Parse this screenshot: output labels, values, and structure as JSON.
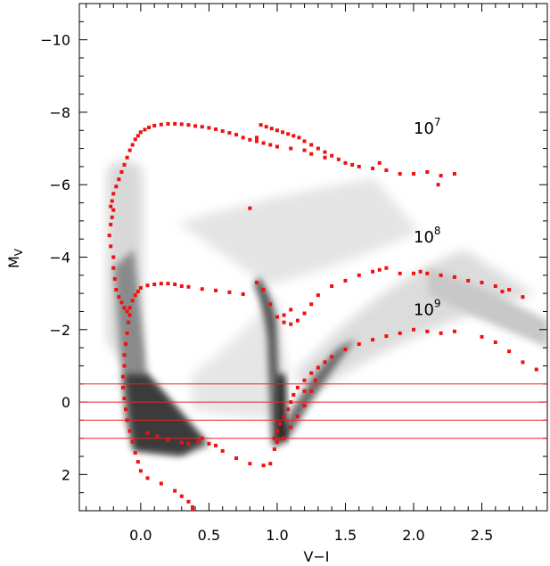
{
  "chart_data": {
    "type": "scatter",
    "title": "",
    "xlabel": "V−I",
    "ylabel": "M",
    "ylabel_sub": "V",
    "xlim": [
      -0.45,
      2.98
    ],
    "ylim": [
      3.0,
      -11.0
    ],
    "x_ticks": [
      0.0,
      0.5,
      1.0,
      1.5,
      2.0,
      2.5
    ],
    "x_tick_labels": [
      "0.0",
      "0.5",
      "1.0",
      "1.5",
      "2.0",
      "2.5"
    ],
    "y_ticks": [
      -10,
      -8,
      -6,
      -4,
      -2,
      0,
      2
    ],
    "y_tick_labels": [
      "−10",
      "−8",
      "−6",
      "−4",
      "−2",
      "0",
      "2"
    ],
    "grid": false,
    "legend": "none",
    "colors": {
      "isochrone": "#ee1111",
      "density": "#222222",
      "hline": "#ee2222"
    },
    "hlines": [
      -0.5,
      0.0,
      0.5,
      1.0
    ],
    "annotations": [
      {
        "base": "10",
        "exp": "7",
        "x": 2.0,
        "y": -7.6
      },
      {
        "base": "10",
        "exp": "8",
        "x": 2.0,
        "y": -4.6
      },
      {
        "base": "10",
        "exp": "9",
        "x": 2.0,
        "y": -2.6
      }
    ],
    "series": [
      {
        "age": "1e7",
        "points": [
          [
            -0.22,
            -5.4
          ],
          [
            -0.21,
            -5.55
          ],
          [
            -0.2,
            -5.75
          ],
          [
            -0.18,
            -5.95
          ],
          [
            -0.16,
            -6.15
          ],
          [
            -0.14,
            -6.35
          ],
          [
            -0.12,
            -6.55
          ],
          [
            -0.1,
            -6.75
          ],
          [
            -0.08,
            -6.95
          ],
          [
            -0.06,
            -7.1
          ],
          [
            -0.04,
            -7.25
          ],
          [
            -0.02,
            -7.35
          ],
          [
            0.0,
            -7.45
          ],
          [
            0.03,
            -7.52
          ],
          [
            0.06,
            -7.58
          ],
          [
            0.1,
            -7.63
          ],
          [
            0.15,
            -7.66
          ],
          [
            0.2,
            -7.68
          ],
          [
            0.25,
            -7.68
          ],
          [
            0.3,
            -7.67
          ],
          [
            0.35,
            -7.65
          ],
          [
            0.4,
            -7.62
          ],
          [
            0.45,
            -7.6
          ],
          [
            0.5,
            -7.57
          ],
          [
            0.55,
            -7.53
          ],
          [
            0.6,
            -7.48
          ],
          [
            0.65,
            -7.43
          ],
          [
            0.7,
            -7.38
          ],
          [
            0.75,
            -7.3
          ],
          [
            0.8,
            -7.24
          ],
          [
            0.85,
            -7.2
          ],
          [
            0.88,
            -7.65
          ],
          [
            0.92,
            -7.6
          ],
          [
            0.96,
            -7.55
          ],
          [
            1.0,
            -7.5
          ],
          [
            1.04,
            -7.45
          ],
          [
            1.08,
            -7.4
          ],
          [
            1.12,
            -7.35
          ],
          [
            1.16,
            -7.3
          ],
          [
            1.2,
            -7.2
          ],
          [
            1.25,
            -7.1
          ],
          [
            1.3,
            -7.0
          ],
          [
            1.35,
            -6.9
          ],
          [
            1.4,
            -6.8
          ],
          [
            1.45,
            -6.7
          ],
          [
            1.5,
            -6.6
          ],
          [
            1.6,
            -6.5
          ],
          [
            1.7,
            -6.45
          ],
          [
            1.8,
            -6.4
          ],
          [
            1.9,
            -6.3
          ],
          [
            2.0,
            -6.3
          ],
          [
            2.1,
            -6.35
          ],
          [
            2.2,
            -6.25
          ],
          [
            2.3,
            -6.3
          ],
          [
            0.85,
            -7.3
          ],
          [
            0.9,
            -7.15
          ],
          [
            0.95,
            -7.1
          ],
          [
            1.0,
            -7.05
          ],
          [
            1.1,
            -7.0
          ],
          [
            1.2,
            -6.95
          ],
          [
            1.25,
            -6.85
          ],
          [
            1.35,
            -6.75
          ],
          [
            1.55,
            -6.55
          ],
          [
            1.75,
            -6.6
          ],
          [
            2.18,
            -6.0
          ]
        ]
      },
      {
        "age": "1e8",
        "points": [
          [
            -0.2,
            -5.3
          ],
          [
            -0.21,
            -5.1
          ],
          [
            -0.22,
            -4.9
          ],
          [
            -0.23,
            -4.6
          ],
          [
            -0.22,
            -4.3
          ],
          [
            -0.2,
            -4.0
          ],
          [
            -0.2,
            -3.7
          ],
          [
            -0.19,
            -3.4
          ],
          [
            -0.18,
            -3.1
          ],
          [
            -0.16,
            -2.9
          ],
          [
            -0.14,
            -2.75
          ],
          [
            -0.12,
            -2.6
          ],
          [
            -0.1,
            -2.5
          ],
          [
            -0.08,
            -2.6
          ],
          [
            -0.06,
            -2.8
          ],
          [
            -0.04,
            -2.95
          ],
          [
            -0.02,
            -3.05
          ],
          [
            0.0,
            -3.15
          ],
          [
            0.05,
            -3.22
          ],
          [
            0.1,
            -3.25
          ],
          [
            0.15,
            -3.27
          ],
          [
            0.2,
            -3.27
          ],
          [
            0.25,
            -3.25
          ],
          [
            0.3,
            -3.2
          ],
          [
            0.35,
            -3.18
          ],
          [
            0.45,
            -3.12
          ],
          [
            0.55,
            -3.08
          ],
          [
            0.65,
            -3.03
          ],
          [
            0.75,
            -2.98
          ],
          [
            0.85,
            -3.3
          ],
          [
            0.9,
            -3.1
          ],
          [
            0.95,
            -2.7
          ],
          [
            1.0,
            -2.35
          ],
          [
            1.05,
            -2.2
          ],
          [
            1.1,
            -2.15
          ],
          [
            1.15,
            -2.25
          ],
          [
            1.2,
            -2.45
          ],
          [
            1.25,
            -2.7
          ],
          [
            1.3,
            -2.95
          ],
          [
            1.4,
            -3.2
          ],
          [
            1.5,
            -3.35
          ],
          [
            1.6,
            -3.5
          ],
          [
            1.7,
            -3.6
          ],
          [
            1.8,
            -3.7
          ],
          [
            1.75,
            -3.65
          ],
          [
            1.9,
            -3.55
          ],
          [
            2.0,
            -3.55
          ],
          [
            2.05,
            -3.6
          ],
          [
            2.1,
            -3.55
          ],
          [
            2.2,
            -3.5
          ],
          [
            2.3,
            -3.45
          ],
          [
            2.4,
            -3.35
          ],
          [
            2.5,
            -3.3
          ],
          [
            2.6,
            -3.2
          ],
          [
            2.7,
            -3.1
          ],
          [
            2.8,
            -2.9
          ],
          [
            2.65,
            -3.05
          ],
          [
            0.8,
            -5.35
          ],
          [
            1.05,
            -2.4
          ],
          [
            1.1,
            -2.55
          ]
        ]
      },
      {
        "age": "1e9",
        "points": [
          [
            -0.08,
            -2.4
          ],
          [
            -0.09,
            -2.2
          ],
          [
            -0.1,
            -1.9
          ],
          [
            -0.11,
            -1.6
          ],
          [
            -0.12,
            -1.3
          ],
          [
            -0.12,
            -1.0
          ],
          [
            -0.13,
            -0.7
          ],
          [
            -0.13,
            -0.4
          ],
          [
            -0.12,
            -0.1
          ],
          [
            -0.11,
            0.2
          ],
          [
            -0.1,
            0.5
          ],
          [
            -0.08,
            0.8
          ],
          [
            -0.06,
            1.1
          ],
          [
            -0.04,
            1.4
          ],
          [
            -0.02,
            1.65
          ],
          [
            0.0,
            1.9
          ],
          [
            0.05,
            2.1
          ],
          [
            0.15,
            2.25
          ],
          [
            0.25,
            2.45
          ],
          [
            0.3,
            2.6
          ],
          [
            0.35,
            2.75
          ],
          [
            0.38,
            2.9
          ],
          [
            0.38,
            3.0
          ],
          [
            0.45,
            1.0
          ],
          [
            0.42,
            1.1
          ],
          [
            0.35,
            1.15
          ],
          [
            0.3,
            1.12
          ],
          [
            0.2,
            1.05
          ],
          [
            0.12,
            0.95
          ],
          [
            0.05,
            0.85
          ],
          [
            0.5,
            1.15
          ],
          [
            0.55,
            1.2
          ],
          [
            0.6,
            1.35
          ],
          [
            0.7,
            1.55
          ],
          [
            0.8,
            1.7
          ],
          [
            0.9,
            1.75
          ],
          [
            0.95,
            1.7
          ],
          [
            0.98,
            1.3
          ],
          [
            0.98,
            1.0
          ],
          [
            1.0,
            0.8
          ],
          [
            1.02,
            0.6
          ],
          [
            1.05,
            0.4
          ],
          [
            1.08,
            0.2
          ],
          [
            1.1,
            0.0
          ],
          [
            1.12,
            -0.2
          ],
          [
            1.15,
            -0.4
          ],
          [
            1.2,
            -0.6
          ],
          [
            1.25,
            -0.8
          ],
          [
            1.3,
            -0.95
          ],
          [
            1.35,
            -1.1
          ],
          [
            1.4,
            -1.25
          ],
          [
            1.5,
            -1.45
          ],
          [
            1.6,
            -1.6
          ],
          [
            1.7,
            -1.72
          ],
          [
            1.8,
            -1.82
          ],
          [
            1.9,
            -1.9
          ],
          [
            2.0,
            -2.0
          ],
          [
            2.1,
            -1.95
          ],
          [
            2.2,
            -1.9
          ],
          [
            2.3,
            -1.95
          ],
          [
            2.5,
            -1.8
          ],
          [
            2.6,
            -1.65
          ],
          [
            2.7,
            -1.4
          ],
          [
            2.8,
            -1.1
          ],
          [
            2.9,
            -0.9
          ],
          [
            1.0,
            1.1
          ],
          [
            1.05,
            1.0
          ],
          [
            1.1,
            0.7
          ],
          [
            1.15,
            0.4
          ],
          [
            1.2,
            0.1
          ],
          [
            1.25,
            -0.3
          ],
          [
            1.2,
            -0.3
          ],
          [
            1.28,
            -0.6
          ]
        ]
      }
    ]
  }
}
